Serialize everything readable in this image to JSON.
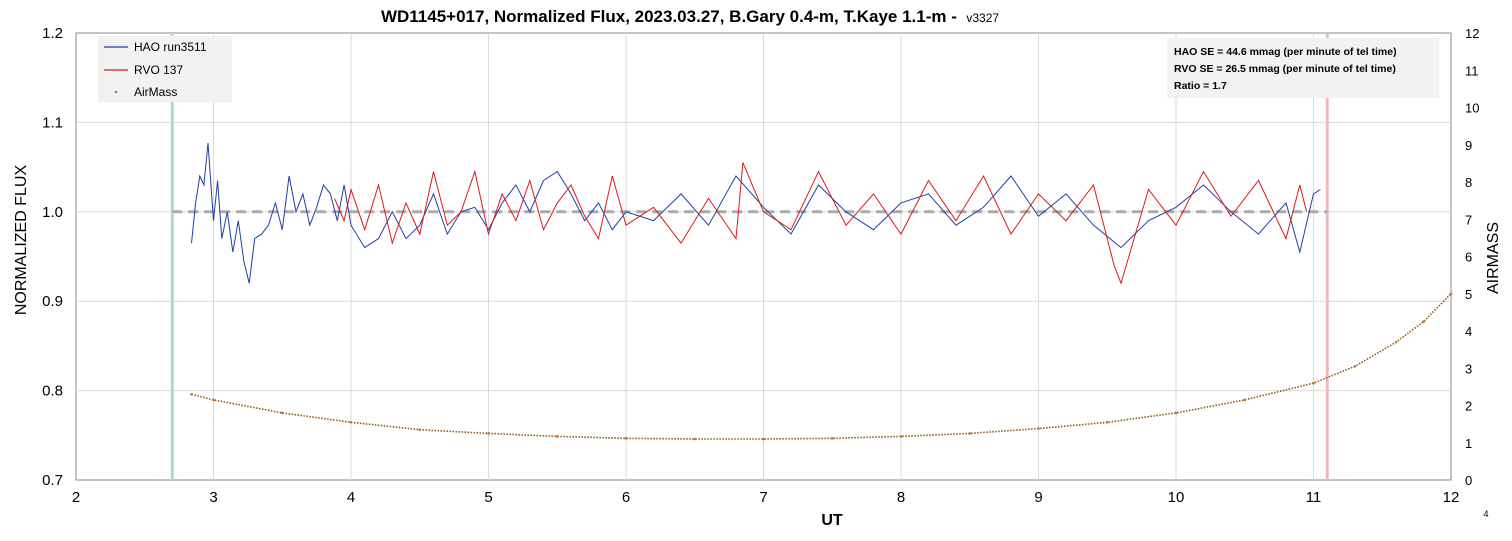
{
  "chart_data": {
    "type": "line",
    "title": "WD1145+017, Normalized Flux, 2023.03.27, B.Gary 0.4-m, T.Kaye 1.1-m -",
    "title_version": "v3327",
    "xlabel": "UT",
    "ylabel": "NORMALIZED FLUX",
    "y2label": "AIRMASS",
    "xlim": [
      2,
      12
    ],
    "ylim": [
      0.7,
      1.2
    ],
    "y2lim": [
      0,
      12
    ],
    "xticks": [
      "2",
      "3",
      "4",
      "5",
      "6",
      "7",
      "8",
      "9",
      "10",
      "11",
      "12"
    ],
    "yticks": [
      "0.7",
      "0.8",
      "0.9",
      "1.0",
      "1.1",
      "1.2"
    ],
    "y2ticks": [
      "0",
      "1",
      "2",
      "3",
      "4",
      "5",
      "6",
      "7",
      "8",
      "9",
      "10",
      "11",
      "12"
    ],
    "grid": true,
    "legend_position": "top-left",
    "corner_label": "4",
    "stats_box": [
      "HAO SE = 44.6 mmag (per minute of tel time)",
      "RVO SE = 26.5 mmag (per minute of tel time)",
      "Ratio = 1.7"
    ],
    "reference_line": {
      "y": 1.0,
      "x_range": [
        2.7,
        11.1
      ],
      "color": "#aaaaaa"
    },
    "vertical_markers": [
      {
        "x": 2.7,
        "color": "#a8dcc0"
      },
      {
        "x": 11.1,
        "color": "#f0b8b8"
      }
    ],
    "series": [
      {
        "name": "HAO run3511",
        "color": "#1f3fa8",
        "axis": "left",
        "x": [
          2.84,
          2.87,
          2.9,
          2.93,
          2.96,
          3.0,
          3.03,
          3.06,
          3.1,
          3.14,
          3.18,
          3.22,
          3.26,
          3.3,
          3.35,
          3.4,
          3.45,
          3.5,
          3.55,
          3.6,
          3.65,
          3.7,
          3.75,
          3.8,
          3.85,
          3.9,
          3.95,
          4.0,
          4.1,
          4.2,
          4.3,
          4.4,
          4.5,
          4.6,
          4.7,
          4.8,
          4.9,
          5.0,
          5.1,
          5.2,
          5.3,
          5.4,
          5.5,
          5.6,
          5.7,
          5.8,
          5.9,
          6.0,
          6.2,
          6.4,
          6.6,
          6.8,
          7.0,
          7.2,
          7.4,
          7.6,
          7.8,
          8.0,
          8.2,
          8.4,
          8.6,
          8.8,
          9.0,
          9.2,
          9.4,
          9.6,
          9.8,
          10.0,
          10.2,
          10.4,
          10.6,
          10.8,
          10.9,
          11.0,
          11.05
        ],
        "values": [
          0.965,
          1.01,
          1.04,
          1.03,
          1.077,
          0.99,
          1.035,
          0.97,
          1.0,
          0.955,
          0.99,
          0.945,
          0.92,
          0.97,
          0.975,
          0.985,
          1.01,
          0.98,
          1.04,
          1.0,
          1.02,
          0.985,
          1.005,
          1.03,
          1.02,
          0.99,
          1.03,
          0.985,
          0.96,
          0.97,
          1.0,
          0.97,
          0.985,
          1.02,
          0.975,
          1.0,
          1.005,
          0.98,
          1.01,
          1.03,
          1.0,
          1.035,
          1.045,
          1.02,
          0.99,
          1.01,
          0.98,
          1.0,
          0.99,
          1.02,
          0.985,
          1.04,
          1.005,
          0.975,
          1.03,
          1.0,
          0.98,
          1.01,
          1.02,
          0.985,
          1.005,
          1.04,
          0.995,
          1.02,
          0.985,
          0.96,
          0.99,
          1.005,
          1.03,
          1.0,
          0.975,
          1.01,
          0.955,
          1.02,
          1.025
        ]
      },
      {
        "name": "RVO 137",
        "color": "#e01818",
        "axis": "left",
        "x": [
          3.88,
          3.95,
          4.0,
          4.1,
          4.2,
          4.3,
          4.4,
          4.5,
          4.6,
          4.7,
          4.8,
          4.9,
          5.0,
          5.1,
          5.2,
          5.3,
          5.4,
          5.5,
          5.6,
          5.7,
          5.8,
          5.9,
          6.0,
          6.2,
          6.4,
          6.6,
          6.8,
          6.85,
          7.0,
          7.2,
          7.4,
          7.6,
          7.8,
          8.0,
          8.2,
          8.4,
          8.6,
          8.8,
          9.0,
          9.2,
          9.4,
          9.55,
          9.6,
          9.8,
          10.0,
          10.2,
          10.4,
          10.6,
          10.8,
          10.9,
          10.95
        ],
        "values": [
          1.015,
          0.99,
          1.025,
          0.98,
          1.03,
          0.965,
          1.01,
          0.975,
          1.045,
          0.985,
          1.0,
          1.045,
          0.975,
          1.02,
          0.99,
          1.035,
          0.98,
          1.01,
          1.03,
          0.995,
          0.97,
          1.04,
          0.985,
          1.005,
          0.965,
          1.015,
          0.97,
          1.055,
          1.0,
          0.98,
          1.045,
          0.985,
          1.02,
          0.975,
          1.035,
          0.99,
          1.04,
          0.975,
          1.02,
          0.99,
          1.03,
          0.94,
          0.92,
          1.025,
          0.985,
          1.045,
          0.995,
          1.035,
          0.97,
          1.03,
          1.0
        ]
      },
      {
        "name": "AirMass",
        "color": "#8b5a1a",
        "axis": "right",
        "x": [
          2.84,
          3.0,
          3.5,
          4.0,
          4.5,
          5.0,
          5.5,
          6.0,
          6.5,
          7.0,
          7.5,
          8.0,
          8.5,
          9.0,
          9.5,
          10.0,
          10.5,
          11.0,
          11.3,
          11.6,
          11.8,
          12.0
        ],
        "values": [
          2.3,
          2.15,
          1.8,
          1.55,
          1.35,
          1.25,
          1.17,
          1.12,
          1.1,
          1.1,
          1.12,
          1.17,
          1.25,
          1.38,
          1.55,
          1.8,
          2.15,
          2.6,
          3.05,
          3.7,
          4.25,
          5.0
        ]
      }
    ]
  }
}
